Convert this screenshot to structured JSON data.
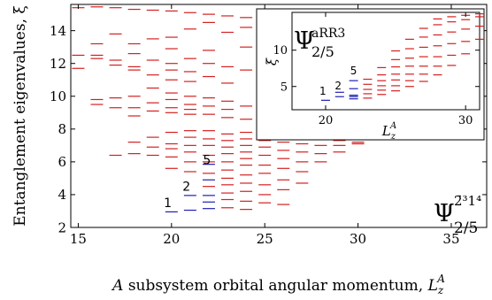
{
  "chart_data": [
    {
      "type": "scatter",
      "marker": "horizontal-dash",
      "xlabel_prefix": "A",
      "xlabel_main": " subsystem orbital angular momentum, ",
      "xlabel_sym": "L",
      "xlabel_sub": "z",
      "xlabel_sup": "A",
      "ylabel": "Entanglement eigenvalues, ξ",
      "xlim": [
        14.6,
        36.9
      ],
      "ylim": [
        2,
        15.6
      ],
      "xticks": [
        "15",
        "20",
        "25",
        "30",
        "35"
      ],
      "yticks": [
        "2",
        "4",
        "6",
        "8",
        "10",
        "12",
        "14"
      ],
      "tick_values_x": [
        15,
        20,
        25,
        30,
        35
      ],
      "tick_values_y": [
        2,
        4,
        6,
        8,
        10,
        12,
        14
      ],
      "label_psi": "Ψ",
      "label_sup": "2̄³1⁴",
      "label_sub": "2/5",
      "colors": {
        "low_levels": "#1f1fb4",
        "levels": "#d42020"
      },
      "counting_labels": [
        {
          "text": "1",
          "x": 19.8,
          "y": 3.25
        },
        {
          "text": "2",
          "x": 20.8,
          "y": 4.25
        },
        {
          "text": "5",
          "x": 21.9,
          "y": 5.85
        }
      ],
      "series": [
        {
          "color": "#1f1fb4",
          "points": [
            [
              20,
              2.95
            ],
            [
              21,
              3.05
            ],
            [
              21,
              3.95
            ],
            [
              22,
              3.15
            ],
            [
              22,
              3.55
            ],
            [
              22,
              3.95
            ],
            [
              22,
              4.9
            ],
            [
              22,
              5.85
            ]
          ]
        },
        {
          "color": "#d42020",
          "points": [
            [
              15,
              15.4
            ],
            [
              16,
              15.45
            ],
            [
              17,
              15.4
            ],
            [
              18,
              15.3
            ],
            [
              19,
              15.25
            ],
            [
              20,
              15.2
            ],
            [
              21,
              15.1
            ],
            [
              22,
              15.0
            ],
            [
              23,
              14.9
            ],
            [
              24,
              14.8
            ],
            [
              25,
              14.7
            ],
            [
              26,
              14.6
            ],
            [
              17,
              13.8
            ],
            [
              18,
              13.2
            ],
            [
              19,
              13.5
            ],
            [
              20,
              13.6
            ],
            [
              21,
              14.1
            ],
            [
              22,
              14.5
            ],
            [
              23,
              13.9
            ],
            [
              24,
              14.2
            ],
            [
              16,
              13.2
            ],
            [
              18,
              12.6
            ],
            [
              20,
              12.9
            ],
            [
              22,
              12.8
            ],
            [
              24,
              13.0
            ],
            [
              15,
              12.5
            ],
            [
              15,
              11.7
            ],
            [
              16,
              12.5
            ],
            [
              16,
              12.3
            ],
            [
              17,
              12.2
            ],
            [
              17,
              11.9
            ],
            [
              18,
              11.8
            ],
            [
              18,
              11.6
            ],
            [
              19,
              12.2
            ],
            [
              19,
              11.3
            ],
            [
              20,
              12.0
            ],
            [
              20,
              11.6
            ],
            [
              20,
              11.0
            ],
            [
              21,
              12.3
            ],
            [
              21,
              11.5
            ],
            [
              21,
              10.9
            ],
            [
              22,
              12.0
            ],
            [
              22,
              11.2
            ],
            [
              23,
              11.8
            ],
            [
              23,
              10.8
            ],
            [
              24,
              11.6
            ],
            [
              25,
              11.2
            ],
            [
              26,
              10.7
            ],
            [
              27,
              10.3
            ],
            [
              28,
              10.0
            ],
            [
              16,
              9.8
            ],
            [
              16,
              9.5
            ],
            [
              17,
              9.9
            ],
            [
              17,
              9.3
            ],
            [
              18,
              10.0
            ],
            [
              18,
              9.3
            ],
            [
              18,
              8.8
            ],
            [
              19,
              10.5
            ],
            [
              19,
              9.6
            ],
            [
              19,
              9.1
            ],
            [
              20,
              10.2
            ],
            [
              20,
              9.8
            ],
            [
              20,
              9.3
            ],
            [
              20,
              9.0
            ],
            [
              21,
              10.0
            ],
            [
              21,
              9.5
            ],
            [
              21,
              9.2
            ],
            [
              21,
              8.9
            ],
            [
              22,
              9.9
            ],
            [
              22,
              9.4
            ],
            [
              22,
              8.9
            ],
            [
              23,
              9.7
            ],
            [
              23,
              9.2
            ],
            [
              23,
              8.7
            ],
            [
              24,
              9.4
            ],
            [
              24,
              8.6
            ],
            [
              25,
              9.2
            ],
            [
              25,
              8.5
            ],
            [
              26,
              8.9
            ],
            [
              26,
              8.3
            ],
            [
              27,
              8.6
            ],
            [
              28,
              8.4
            ],
            [
              29,
              8.1
            ],
            [
              17,
              6.4
            ],
            [
              18,
              6.5
            ],
            [
              18,
              7.2
            ],
            [
              19,
              6.9
            ],
            [
              19,
              7.5
            ],
            [
              19,
              6.4
            ],
            [
              20,
              7.8
            ],
            [
              20,
              7.1
            ],
            [
              20,
              6.8
            ],
            [
              20,
              6.3
            ],
            [
              20,
              5.6
            ],
            [
              21,
              7.9
            ],
            [
              21,
              7.5
            ],
            [
              21,
              7.0
            ],
            [
              21,
              6.6
            ],
            [
              21,
              6.0
            ],
            [
              21,
              5.4
            ],
            [
              22,
              7.9
            ],
            [
              22,
              7.4
            ],
            [
              22,
              7.0
            ],
            [
              22,
              6.4
            ],
            [
              22,
              6.0
            ],
            [
              23,
              7.7
            ],
            [
              23,
              7.3
            ],
            [
              23,
              6.9
            ],
            [
              23,
              6.5
            ],
            [
              23,
              6.0
            ],
            [
              23,
              5.5
            ],
            [
              23,
              5.0
            ],
            [
              23,
              4.6
            ],
            [
              24,
              7.8
            ],
            [
              24,
              7.4
            ],
            [
              24,
              7.0
            ],
            [
              24,
              6.6
            ],
            [
              24,
              6.2
            ],
            [
              24,
              5.8
            ],
            [
              24,
              5.2
            ],
            [
              24,
              4.7
            ],
            [
              24,
              4.2
            ],
            [
              24,
              3.6
            ],
            [
              24,
              3.1
            ],
            [
              25,
              7.7
            ],
            [
              25,
              7.3
            ],
            [
              25,
              6.9
            ],
            [
              25,
              6.4
            ],
            [
              25,
              5.8
            ],
            [
              25,
              5.3
            ],
            [
              25,
              4.6
            ],
            [
              25,
              4.0
            ],
            [
              25,
              3.5
            ],
            [
              26,
              7.6
            ],
            [
              26,
              7.2
            ],
            [
              26,
              6.7
            ],
            [
              26,
              6.2
            ],
            [
              26,
              5.6
            ],
            [
              26,
              4.9
            ],
            [
              26,
              4.3
            ],
            [
              26,
              3.4
            ],
            [
              27,
              7.5
            ],
            [
              27,
              7.1
            ],
            [
              27,
              6.6
            ],
            [
              27,
              6.0
            ],
            [
              27,
              5.4
            ],
            [
              27,
              4.7
            ],
            [
              28,
              7.5
            ],
            [
              28,
              7.0
            ],
            [
              28,
              6.5
            ],
            [
              28,
              6.0
            ],
            [
              29,
              7.3
            ],
            [
              29,
              7.0
            ],
            [
              29,
              6.6
            ],
            [
              30,
              7.2
            ],
            [
              30,
              7.1
            ],
            [
              23,
              4.1
            ],
            [
              23,
              3.7
            ],
            [
              23,
              3.2
            ],
            [
              22,
              4.5
            ],
            [
              22,
              5.3
            ]
          ]
        }
      ]
    },
    {
      "type": "scatter",
      "marker": "horizontal-dash",
      "inset": true,
      "xlabel_sym": "L",
      "xlabel_sub": "z",
      "xlabel_sup": "A",
      "ylabel": "ξ",
      "xlim": [
        17.6,
        31.0
      ],
      "ylim": [
        1.8,
        15.2
      ],
      "xticks": [
        "20",
        "30"
      ],
      "yticks": [
        "5",
        "10"
      ],
      "tick_values_x": [
        20,
        30
      ],
      "tick_values_y": [
        5,
        10
      ],
      "label_psi": "Ψ",
      "label_sup": "aRR3",
      "label_sub": "2/5",
      "counting_labels": [
        {
          "text": "1",
          "x": 19.8,
          "y": 3.9
        },
        {
          "text": "2",
          "x": 20.9,
          "y": 4.6
        },
        {
          "text": "5",
          "x": 22.0,
          "y": 6.7
        }
      ],
      "series": [
        {
          "color": "#1f1fb4",
          "points": [
            [
              20,
              3.1
            ],
            [
              21,
              3.6
            ],
            [
              21,
              4.2
            ],
            [
              22,
              3.3
            ],
            [
              22,
              3.6
            ],
            [
              22,
              3.8
            ],
            [
              22,
              4.7
            ],
            [
              22,
              5.8
            ]
          ]
        },
        {
          "color": "#d42020",
          "points": [
            [
              23,
              3.4
            ],
            [
              23,
              4.0
            ],
            [
              23,
              4.6
            ],
            [
              23,
              5.3
            ],
            [
              23,
              6.0
            ],
            [
              24,
              3.9
            ],
            [
              24,
              4.5
            ],
            [
              24,
              5.1
            ],
            [
              24,
              5.8
            ],
            [
              24,
              6.6
            ],
            [
              24,
              7.6
            ],
            [
              25,
              4.4
            ],
            [
              25,
              5.1
            ],
            [
              25,
              5.9
            ],
            [
              25,
              6.7
            ],
            [
              25,
              7.7
            ],
            [
              25,
              8.7
            ],
            [
              25,
              9.9
            ],
            [
              26,
              5.0
            ],
            [
              26,
              5.8
            ],
            [
              26,
              6.7
            ],
            [
              26,
              7.8
            ],
            [
              26,
              8.9
            ],
            [
              26,
              10.2
            ],
            [
              26,
              11.5
            ],
            [
              27,
              5.7
            ],
            [
              27,
              6.7
            ],
            [
              27,
              7.8
            ],
            [
              27,
              9.1
            ],
            [
              27,
              10.4
            ],
            [
              27,
              11.8
            ],
            [
              27,
              13.0
            ],
            [
              28,
              6.6
            ],
            [
              28,
              7.8
            ],
            [
              28,
              9.1
            ],
            [
              28,
              10.6
            ],
            [
              28,
              12.1
            ],
            [
              28,
              13.5
            ],
            [
              28,
              14.3
            ],
            [
              29,
              7.9
            ],
            [
              29,
              9.3
            ],
            [
              29,
              10.9
            ],
            [
              29,
              12.5
            ],
            [
              29,
              13.9
            ],
            [
              29,
              14.6
            ],
            [
              30,
              9.5
            ],
            [
              30,
              11.2
            ],
            [
              30,
              12.9
            ],
            [
              30,
              14.2
            ],
            [
              30,
              14.8
            ],
            [
              31,
              11.5
            ],
            [
              31,
              13.3
            ],
            [
              31,
              14.6
            ],
            [
              31,
              15.0
            ]
          ]
        }
      ]
    }
  ]
}
